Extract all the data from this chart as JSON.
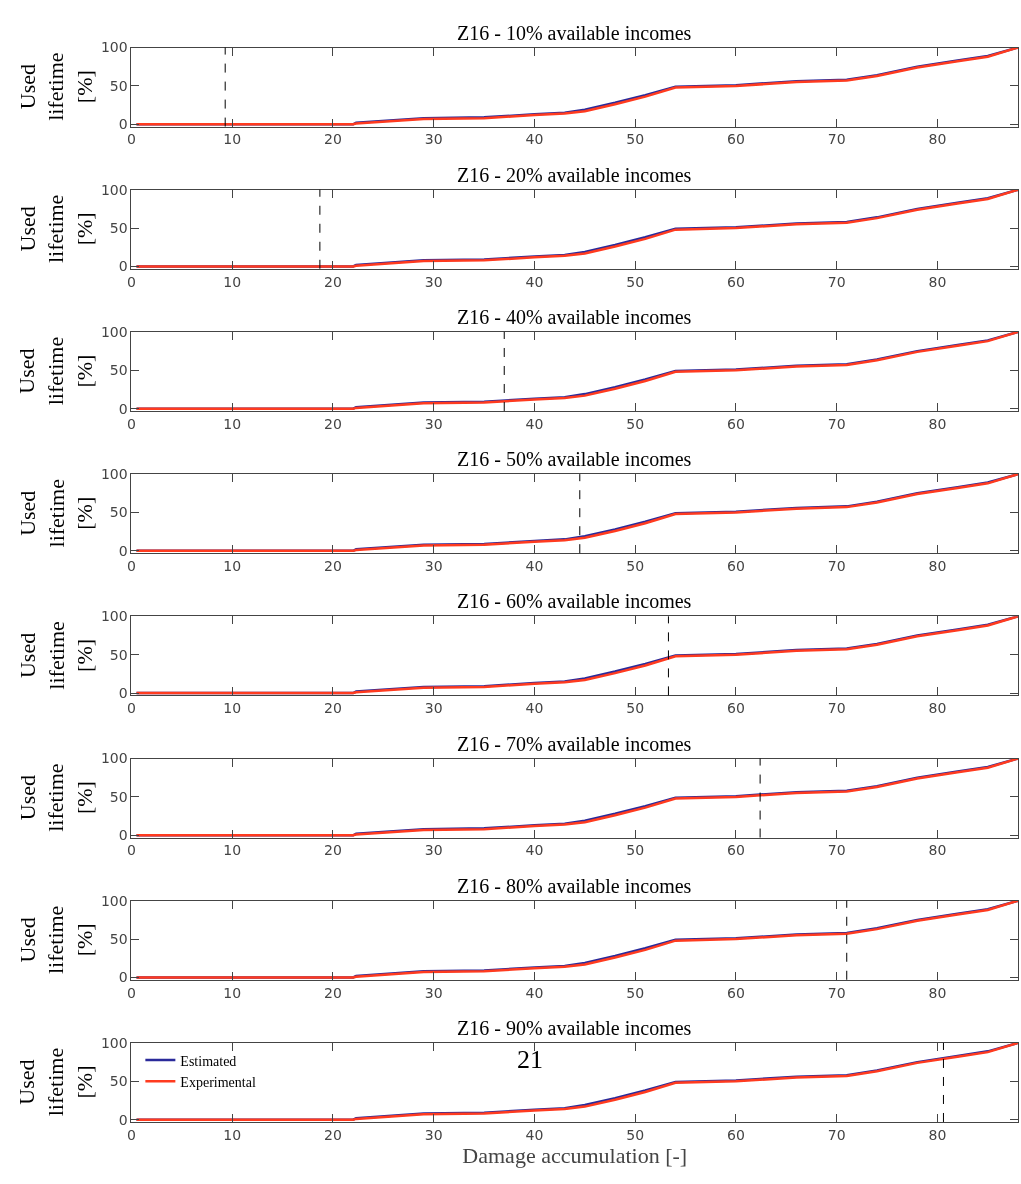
{
  "chart_data": [
    {
      "type": "line",
      "title": "Z16 - 10% available incomes",
      "ylabel": "Used lifetime [%]",
      "xlim": [
        0,
        88
      ],
      "ylim": [
        -3,
        100
      ],
      "xticks": [
        0,
        10,
        20,
        30,
        40,
        50,
        60,
        70,
        80
      ],
      "yticks": [
        0,
        50,
        100
      ],
      "x": [
        0.5,
        22,
        22.3,
        29,
        35,
        40,
        43,
        45,
        48,
        51,
        54,
        60,
        66,
        71,
        74,
        78,
        82,
        85,
        88
      ],
      "series": [
        {
          "color": "#2a2a9a",
          "values": [
            0,
            0,
            2,
            8,
            9,
            13,
            15,
            19,
            28,
            38,
            49,
            51,
            56,
            58,
            64,
            75,
            83,
            89,
            100
          ]
        },
        {
          "color": "#ff3b1f",
          "values": [
            0,
            0,
            1,
            7,
            8,
            12,
            14,
            17,
            26,
            36,
            48,
            50,
            55,
            57,
            63,
            74,
            82,
            88,
            100
          ]
        }
      ],
      "ref_lines": [
        {
          "axis": "x",
          "value": 9.3,
          "color": "#000000",
          "line_style": "dashed"
        }
      ]
    },
    {
      "type": "line",
      "title": "Z16 - 20% available incomes",
      "ylabel": "Used lifetime [%]",
      "xlim": [
        0,
        88
      ],
      "ylim": [
        -3,
        100
      ],
      "xticks": [
        0,
        10,
        20,
        30,
        40,
        50,
        60,
        70,
        80
      ],
      "yticks": [
        0,
        50,
        100
      ],
      "x": [
        0.5,
        22,
        22.3,
        29,
        35,
        40,
        43,
        45,
        48,
        51,
        54,
        60,
        66,
        71,
        74,
        78,
        82,
        85,
        88
      ],
      "series": [
        {
          "color": "#2a2a9a",
          "values": [
            0,
            0,
            2,
            8,
            9,
            13,
            15,
            19,
            28,
            38,
            49,
            51,
            56,
            58,
            64,
            75,
            83,
            89,
            100
          ]
        },
        {
          "color": "#ff3b1f",
          "values": [
            0,
            0,
            1,
            7,
            8,
            12,
            14,
            17,
            26,
            36,
            48,
            50,
            55,
            57,
            63,
            74,
            82,
            88,
            100
          ]
        }
      ],
      "ref_lines": [
        {
          "axis": "x",
          "value": 18.7,
          "color": "#000000",
          "line_style": "dashed"
        }
      ]
    },
    {
      "type": "line",
      "title": "Z16 - 40% available incomes",
      "ylabel": "Used lifetime [%]",
      "xlim": [
        0,
        88
      ],
      "ylim": [
        -3,
        100
      ],
      "xticks": [
        0,
        10,
        20,
        30,
        40,
        50,
        60,
        70,
        80
      ],
      "yticks": [
        0,
        50,
        100
      ],
      "x": [
        0.5,
        22,
        22.3,
        29,
        35,
        40,
        43,
        45,
        48,
        51,
        54,
        60,
        66,
        71,
        74,
        78,
        82,
        85,
        88
      ],
      "series": [
        {
          "color": "#2a2a9a",
          "values": [
            0,
            0,
            2,
            8,
            9,
            13,
            15,
            19,
            28,
            38,
            49,
            51,
            56,
            58,
            64,
            75,
            83,
            89,
            100
          ]
        },
        {
          "color": "#ff3b1f",
          "values": [
            0,
            0,
            1,
            7,
            8,
            12,
            14,
            17,
            26,
            36,
            48,
            50,
            55,
            57,
            63,
            74,
            82,
            88,
            100
          ]
        }
      ],
      "ref_lines": [
        {
          "axis": "x",
          "value": 37,
          "color": "#000000",
          "line_style": "dashed"
        }
      ]
    },
    {
      "type": "line",
      "title": "Z16 - 50% available incomes",
      "ylabel": "Used lifetime [%]",
      "xlim": [
        0,
        88
      ],
      "ylim": [
        -3,
        100
      ],
      "xticks": [
        0,
        10,
        20,
        30,
        40,
        50,
        60,
        70,
        80
      ],
      "yticks": [
        0,
        50,
        100
      ],
      "x": [
        0.5,
        22,
        22.3,
        29,
        35,
        40,
        43,
        45,
        48,
        51,
        54,
        60,
        66,
        71,
        74,
        78,
        82,
        85,
        88
      ],
      "series": [
        {
          "color": "#2a2a9a",
          "values": [
            0,
            0,
            2,
            8,
            9,
            13,
            15,
            19,
            28,
            38,
            49,
            51,
            56,
            58,
            64,
            75,
            83,
            89,
            100
          ]
        },
        {
          "color": "#ff3b1f",
          "values": [
            0,
            0,
            1,
            7,
            8,
            12,
            14,
            17,
            26,
            36,
            48,
            50,
            55,
            57,
            63,
            74,
            82,
            88,
            100
          ]
        }
      ],
      "ref_lines": [
        {
          "axis": "x",
          "value": 44.5,
          "color": "#000000",
          "line_style": "dashed"
        }
      ]
    },
    {
      "type": "line",
      "title": "Z16 - 60% available incomes",
      "ylabel": "Used lifetime [%]",
      "xlim": [
        0,
        88
      ],
      "ylim": [
        -3,
        100
      ],
      "xticks": [
        0,
        10,
        20,
        30,
        40,
        50,
        60,
        70,
        80
      ],
      "yticks": [
        0,
        50,
        100
      ],
      "x": [
        0.5,
        22,
        22.3,
        29,
        35,
        40,
        43,
        45,
        48,
        51,
        54,
        60,
        66,
        71,
        74,
        78,
        82,
        85,
        88
      ],
      "series": [
        {
          "color": "#2a2a9a",
          "values": [
            0,
            0,
            2,
            8,
            9,
            13,
            15,
            19,
            28,
            38,
            49,
            51,
            56,
            58,
            64,
            75,
            83,
            89,
            100
          ]
        },
        {
          "color": "#ff3b1f",
          "values": [
            0,
            0,
            1,
            7,
            8,
            12,
            14,
            17,
            26,
            36,
            48,
            50,
            55,
            57,
            63,
            74,
            82,
            88,
            100
          ]
        }
      ],
      "ref_lines": [
        {
          "axis": "x",
          "value": 53.3,
          "color": "#000000",
          "line_style": "dashed"
        }
      ]
    },
    {
      "type": "line",
      "title": "Z16 - 70% available incomes",
      "ylabel": "Used lifetime [%]",
      "xlim": [
        0,
        88
      ],
      "ylim": [
        -3,
        100
      ],
      "xticks": [
        0,
        10,
        20,
        30,
        40,
        50,
        60,
        70,
        80
      ],
      "yticks": [
        0,
        50,
        100
      ],
      "x": [
        0.5,
        22,
        22.3,
        29,
        35,
        40,
        43,
        45,
        48,
        51,
        54,
        60,
        66,
        71,
        74,
        78,
        82,
        85,
        88
      ],
      "series": [
        {
          "color": "#2a2a9a",
          "values": [
            0,
            0,
            2,
            8,
            9,
            13,
            15,
            19,
            28,
            38,
            49,
            51,
            56,
            58,
            64,
            75,
            83,
            89,
            100
          ]
        },
        {
          "color": "#ff3b1f",
          "values": [
            0,
            0,
            1,
            7,
            8,
            12,
            14,
            17,
            26,
            36,
            48,
            50,
            55,
            57,
            63,
            74,
            82,
            88,
            100
          ]
        }
      ],
      "ref_lines": [
        {
          "axis": "x",
          "value": 62.4,
          "color": "#000000",
          "line_style": "dashed"
        }
      ]
    },
    {
      "type": "line",
      "title": "Z16 - 80% available incomes",
      "ylabel": "Used lifetime [%]",
      "xlim": [
        0,
        88
      ],
      "ylim": [
        -3,
        100
      ],
      "xticks": [
        0,
        10,
        20,
        30,
        40,
        50,
        60,
        70,
        80
      ],
      "yticks": [
        0,
        50,
        100
      ],
      "x": [
        0.5,
        22,
        22.3,
        29,
        35,
        40,
        43,
        45,
        48,
        51,
        54,
        60,
        66,
        71,
        74,
        78,
        82,
        85,
        88
      ],
      "series": [
        {
          "color": "#2a2a9a",
          "values": [
            0,
            0,
            2,
            8,
            9,
            13,
            15,
            19,
            28,
            38,
            49,
            51,
            56,
            58,
            64,
            75,
            83,
            89,
            100
          ]
        },
        {
          "color": "#ff3b1f",
          "values": [
            0,
            0,
            1,
            7,
            8,
            12,
            14,
            17,
            26,
            36,
            48,
            50,
            55,
            57,
            63,
            74,
            82,
            88,
            100
          ]
        }
      ],
      "ref_lines": [
        {
          "axis": "x",
          "value": 71,
          "color": "#000000",
          "line_style": "dashed"
        }
      ]
    },
    {
      "type": "line",
      "title": "Z16 - 90% available incomes",
      "ylabel": "Used lifetime [%]",
      "xlabel": "Damage accumulation [-]",
      "xlim": [
        0,
        88
      ],
      "ylim": [
        -3,
        100
      ],
      "xticks": [
        0,
        10,
        20,
        30,
        40,
        50,
        60,
        70,
        80
      ],
      "yticks": [
        0,
        50,
        100
      ],
      "legend": "top left",
      "annotations": [
        "21"
      ],
      "x": [
        0.5,
        22,
        22.3,
        29,
        35,
        40,
        43,
        45,
        48,
        51,
        54,
        60,
        66,
        71,
        74,
        78,
        82,
        85,
        88
      ],
      "series": [
        {
          "name": "Estimated",
          "color": "#2a2a9a",
          "values": [
            0,
            0,
            2,
            8,
            9,
            13,
            15,
            19,
            28,
            38,
            49,
            51,
            56,
            58,
            64,
            75,
            83,
            89,
            100
          ]
        },
        {
          "name": "Experimental",
          "color": "#ff3b1f",
          "values": [
            0,
            0,
            1,
            7,
            8,
            12,
            14,
            17,
            26,
            36,
            48,
            50,
            55,
            57,
            63,
            74,
            82,
            88,
            100
          ]
        }
      ],
      "ref_lines": [
        {
          "axis": "x",
          "value": 80.6,
          "color": "#000000",
          "line_style": "dashed"
        }
      ]
    }
  ]
}
